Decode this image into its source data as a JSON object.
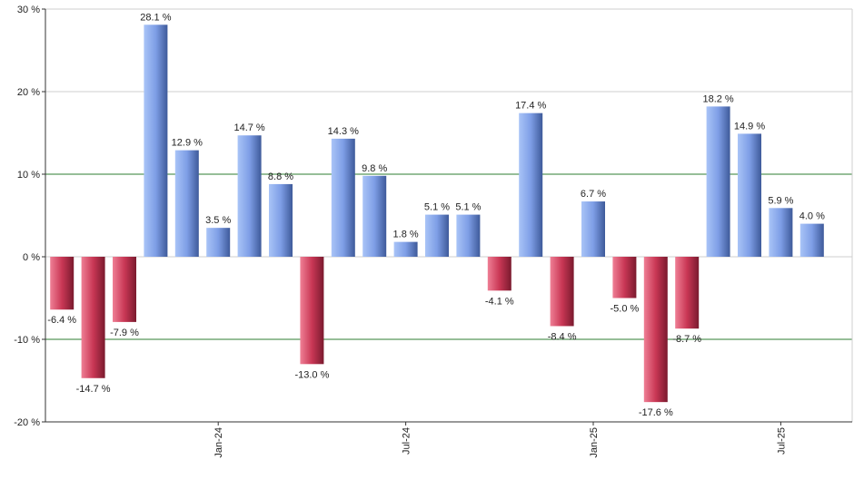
{
  "chart_data": {
    "type": "bar",
    "title": "",
    "xlabel": "",
    "ylabel": "",
    "ylim": [
      -20,
      30
    ],
    "y_ticks": [
      30,
      20,
      10,
      0,
      -10,
      -20
    ],
    "y_tick_suffix": " %",
    "reference_lines": [
      10,
      -10
    ],
    "grid": true,
    "values": [
      -6.4,
      -14.7,
      -7.9,
      28.1,
      12.9,
      3.5,
      14.7,
      8.8,
      -13.0,
      14.3,
      9.8,
      1.8,
      5.1,
      5.1,
      -4.1,
      17.4,
      -8.4,
      6.7,
      -5.0,
      -17.6,
      -8.7,
      18.2,
      14.9,
      5.9,
      4.0
    ],
    "data_labels": [
      "-6.4 %",
      "-14.7 %",
      "-7.9 %",
      "28.1 %",
      "12.9 %",
      "3.5 %",
      "14.7 %",
      "8.8 %",
      "-13.0 %",
      "14.3 %",
      "9.8 %",
      "1.8 %",
      "5.1 %",
      "5.1 %",
      "-4.1 %",
      "17.4 %",
      "-8.4 %",
      "6.7 %",
      "-5.0 %",
      "-17.6 %",
      "-8.7 %",
      "18.2 %",
      "14.9 %",
      "5.9 %",
      "4.0 %"
    ],
    "x_tick_labels": [
      {
        "label": "Jan-24",
        "index": 5
      },
      {
        "label": "Jul-24",
        "index": 11
      },
      {
        "label": "Jan-25",
        "index": 17
      },
      {
        "label": "Jul-25",
        "index": 23
      }
    ],
    "colors": {
      "positive": "#7e9ee6",
      "negative": "#c93755",
      "reference_line": "#2e7d32",
      "gridline": "#cfcfcf",
      "axis": "#333333"
    }
  }
}
